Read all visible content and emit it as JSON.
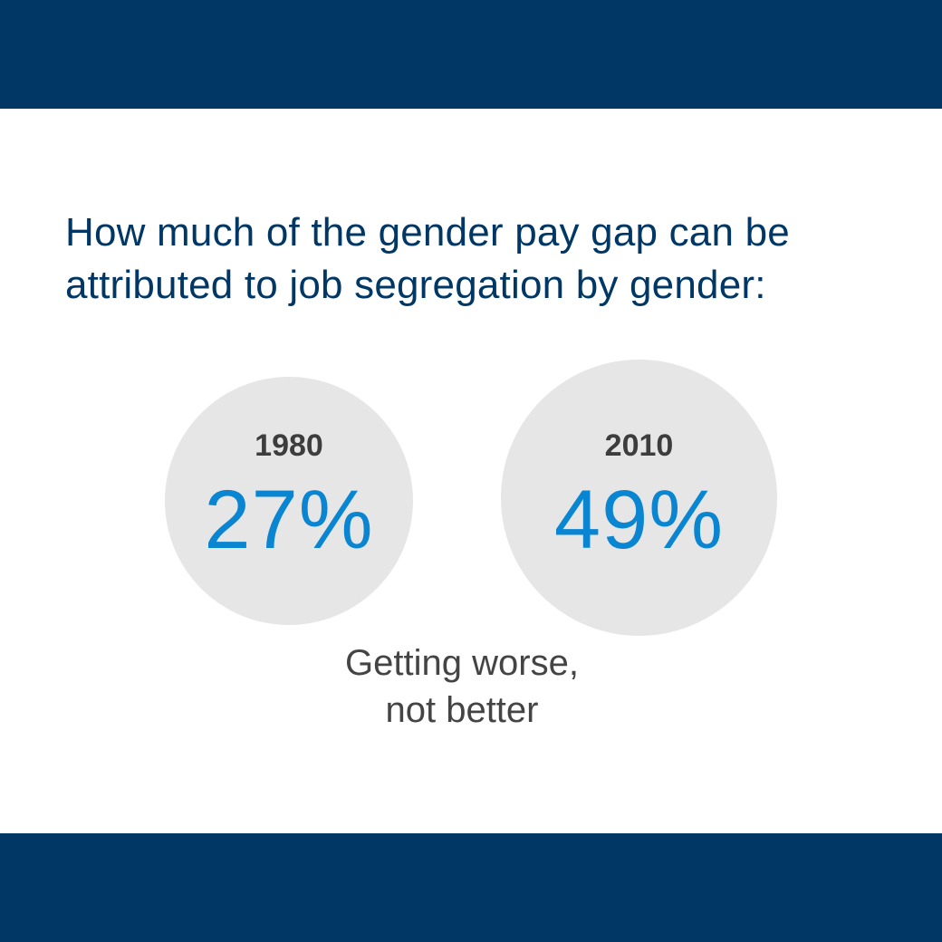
{
  "colors": {
    "band": "#003764",
    "headline": "#003764",
    "circle": "#e6e6e6",
    "year_text": "#3d3d3d",
    "percent_text": "#0a85d2",
    "caption_text": "#444444"
  },
  "headline": {
    "line1": "How much of the gender pay gap can be",
    "line2": "attributed to job segregation by gender:"
  },
  "stats": [
    {
      "year": "1980",
      "percent": "27%",
      "value": 27
    },
    {
      "year": "2010",
      "percent": "49%",
      "value": 49
    }
  ],
  "caption": {
    "line1": "Getting worse,",
    "line2": "not better"
  }
}
